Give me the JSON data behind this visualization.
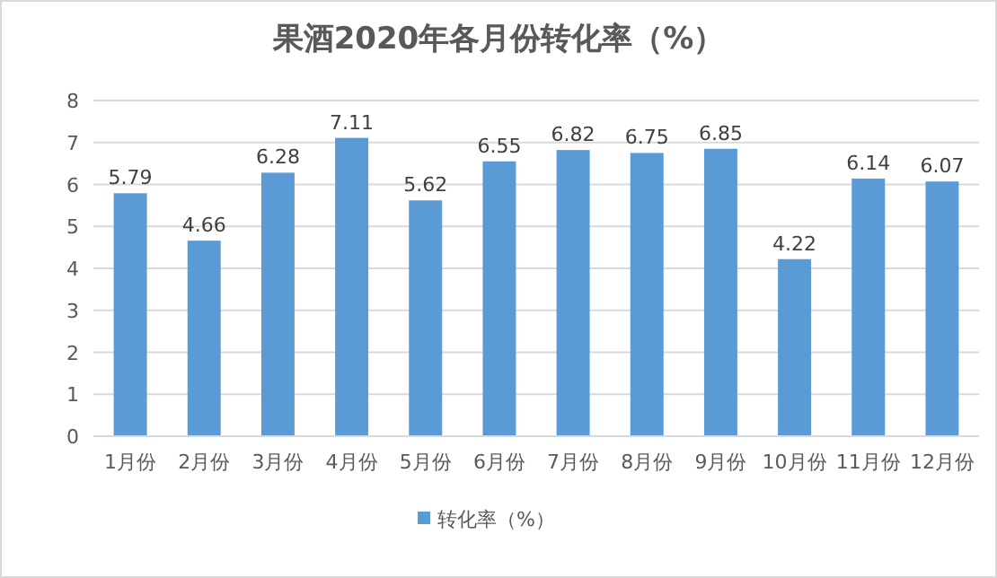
{
  "chart_data": {
    "type": "bar",
    "title": "果酒2020年各月份转化率（%）",
    "categories": [
      "1月份",
      "2月份",
      "3月份",
      "4月份",
      "5月份",
      "6月份",
      "7月份",
      "8月份",
      "9月份",
      "10月份",
      "11月份",
      "12月份"
    ],
    "series": [
      {
        "name": "转化率（%）",
        "color": "#5b9bd5",
        "values": [
          5.79,
          4.66,
          6.28,
          7.11,
          5.62,
          6.55,
          6.82,
          6.75,
          6.85,
          4.22,
          6.14,
          6.07
        ]
      }
    ],
    "ylim": [
      0,
      8
    ],
    "yticks": [
      0,
      1,
      2,
      3,
      4,
      5,
      6,
      7,
      8
    ],
    "grid": "y",
    "legend": "bottom",
    "data_labels": true
  }
}
